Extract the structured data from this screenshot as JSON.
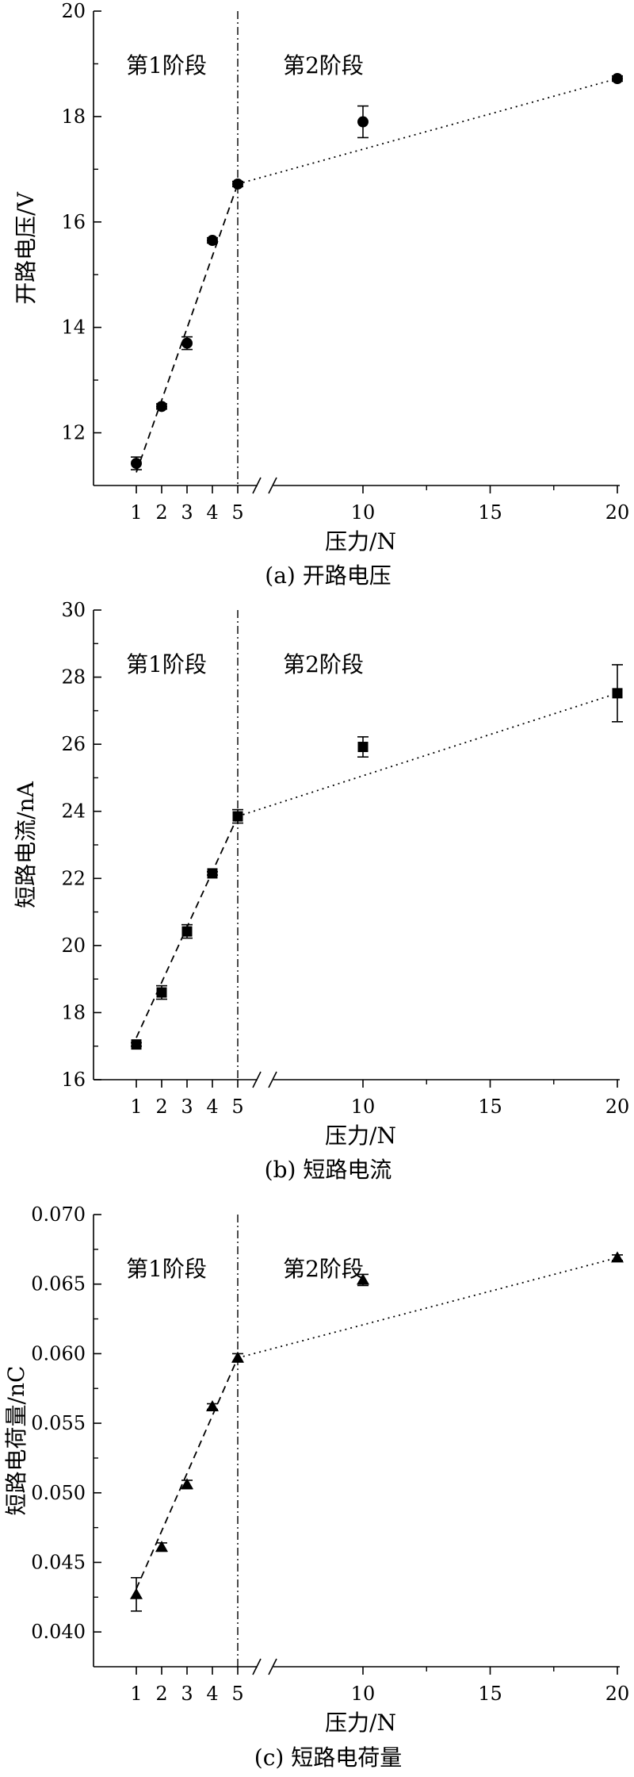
{
  "chart_data": [
    {
      "type": "scatter",
      "caption": "(a)  开路电压",
      "ylabel": "开路电压/V",
      "xlabel": "压力/N",
      "ylim": [
        11,
        20
      ],
      "yticks": [
        "12",
        "14",
        "16",
        "18",
        "20"
      ],
      "xticks_stage1": [
        "1",
        "2",
        "3",
        "4",
        "5"
      ],
      "xticks_stage2": [
        "10",
        "15",
        "20"
      ],
      "stage1_label": "第1阶段",
      "stage2_label": "第2阶段",
      "marker": "circle",
      "points": [
        {
          "x": 1,
          "y": 11.42,
          "err": 0.12
        },
        {
          "x": 2,
          "y": 12.5,
          "err": 0.05
        },
        {
          "x": 3,
          "y": 13.7,
          "err": 0.12
        },
        {
          "x": 4,
          "y": 15.65,
          "err": 0.05
        },
        {
          "x": 5,
          "y": 16.72,
          "err": 0.05
        },
        {
          "x": 10,
          "y": 17.9,
          "err": 0.3
        },
        {
          "x": 20,
          "y": 18.72,
          "err": 0.05
        }
      ],
      "fit_stage1": [
        [
          1,
          11.25
        ],
        [
          5,
          16.72
        ]
      ],
      "fit_stage2": [
        [
          5,
          16.72
        ],
        [
          20,
          18.72
        ]
      ]
    },
    {
      "type": "scatter",
      "caption": "(b)  短路电流",
      "ylabel": "短路电流/nA",
      "xlabel": "压力/N",
      "ylim": [
        16,
        30
      ],
      "yticks": [
        "16",
        "18",
        "20",
        "22",
        "24",
        "26",
        "28",
        "30"
      ],
      "xticks_stage1": [
        "1",
        "2",
        "3",
        "4",
        "5"
      ],
      "xticks_stage2": [
        "10",
        "15",
        "20"
      ],
      "stage1_label": "第1阶段",
      "stage2_label": "第2阶段",
      "marker": "square",
      "points": [
        {
          "x": 1,
          "y": 17.05,
          "err": 0.05
        },
        {
          "x": 2,
          "y": 18.6,
          "err": 0.2
        },
        {
          "x": 3,
          "y": 20.42,
          "err": 0.2
        },
        {
          "x": 4,
          "y": 22.15,
          "err": 0.05
        },
        {
          "x": 5,
          "y": 23.85,
          "err": 0.2
        },
        {
          "x": 10,
          "y": 25.92,
          "err": 0.3
        },
        {
          "x": 20,
          "y": 27.52,
          "err": 0.85
        }
      ],
      "fit_stage1": [
        [
          1,
          17.25
        ],
        [
          5,
          23.85
        ]
      ],
      "fit_stage2": [
        [
          5,
          23.85
        ],
        [
          20,
          27.52
        ]
      ]
    },
    {
      "type": "scatter",
      "caption": "(c)  短路电荷量",
      "ylabel": "短路电荷量/nC",
      "xlabel": "压力/N",
      "ylim": [
        0.0375,
        0.07
      ],
      "yticks": [
        "0.040",
        "0.045",
        "0.050",
        "0.055",
        "0.060",
        "0.065",
        "0.070"
      ],
      "xticks_stage1": [
        "1",
        "2",
        "3",
        "4",
        "5"
      ],
      "xticks_stage2": [
        "10",
        "15",
        "20"
      ],
      "stage1_label": "第1阶段",
      "stage2_label": "第2阶段",
      "marker": "triangle",
      "points": [
        {
          "x": 1,
          "y": 0.0427,
          "err": 0.0012
        },
        {
          "x": 2,
          "y": 0.0461,
          "err": 0.0003
        },
        {
          "x": 3,
          "y": 0.0506,
          "err": 0.0003
        },
        {
          "x": 4,
          "y": 0.0562,
          "err": 0.0002
        },
        {
          "x": 5,
          "y": 0.0597,
          "err": 0.0003
        },
        {
          "x": 10,
          "y": 0.0653,
          "err": 0.0004
        },
        {
          "x": 20,
          "y": 0.0669,
          "err": 0.0002
        }
      ],
      "fit_stage1": [
        [
          1,
          0.0431
        ],
        [
          5,
          0.0597
        ]
      ],
      "fit_stage2": [
        [
          5,
          0.0597
        ],
        [
          20,
          0.0669
        ]
      ]
    }
  ]
}
